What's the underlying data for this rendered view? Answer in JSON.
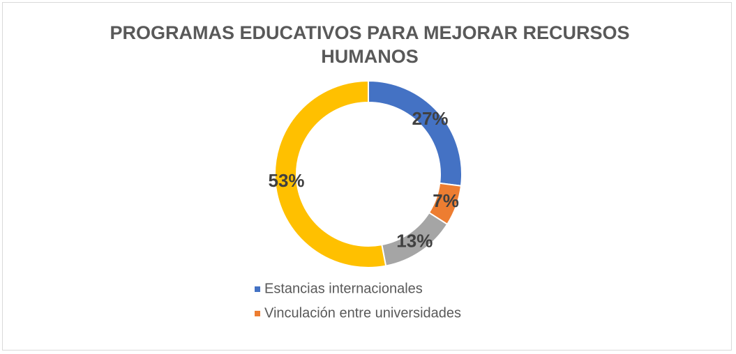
{
  "chart_data": {
    "type": "donut",
    "title": "PROGRAMAS EDUCATIVOS PARA MEJORAR RECURSOS HUMANOS",
    "categories": [
      "Estancias internacionales",
      "Vinculación entre universidades",
      null,
      null
    ],
    "values": [
      27,
      7,
      13,
      53
    ],
    "value_labels": [
      "27%",
      "7%",
      "13%",
      "53%"
    ],
    "colors": [
      "#4472c4",
      "#ed7d31",
      "#a5a5a5",
      "#ffc000"
    ],
    "legend": "bottom"
  }
}
